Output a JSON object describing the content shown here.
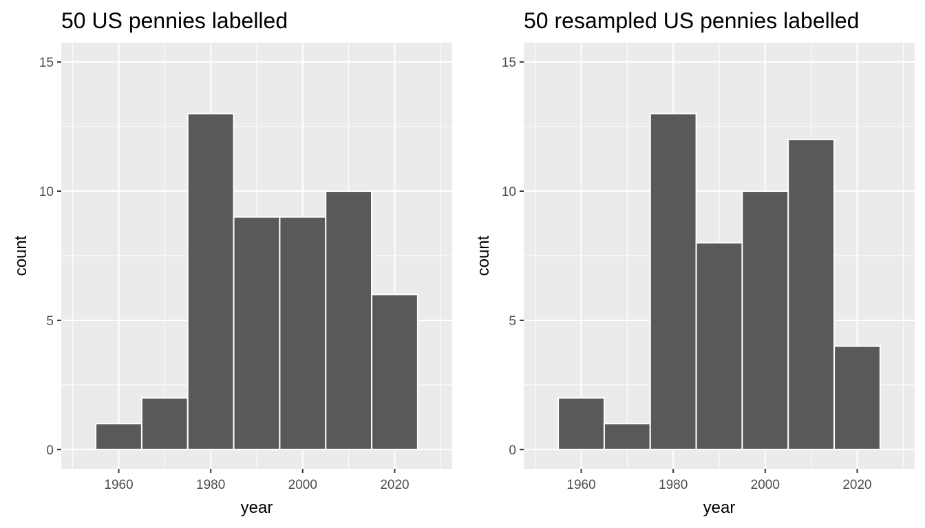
{
  "chart_data": [
    {
      "type": "bar",
      "title": "50 US pennies labelled",
      "xlabel": "year",
      "ylabel": "count",
      "bin_width": 10,
      "bins": [
        {
          "start": 1955,
          "end": 1965,
          "count": 1
        },
        {
          "start": 1965,
          "end": 1975,
          "count": 2
        },
        {
          "start": 1975,
          "end": 1985,
          "count": 13
        },
        {
          "start": 1985,
          "end": 1995,
          "count": 9
        },
        {
          "start": 1995,
          "end": 2005,
          "count": 9
        },
        {
          "start": 2005,
          "end": 2015,
          "count": 10
        },
        {
          "start": 2015,
          "end": 2025,
          "count": 6
        }
      ],
      "xlim": [
        1947.5,
        2032.5
      ],
      "ylim": [
        -0.75,
        15.75
      ],
      "x_ticks": [
        1960,
        1980,
        2000,
        2020
      ],
      "x_tick_labels": [
        "1960",
        "1980",
        "2000",
        "2020"
      ],
      "x_minor_ticks": [
        1950,
        1970,
        1990,
        2010,
        2030
      ],
      "y_ticks": [
        0,
        5,
        10,
        15
      ],
      "y_tick_labels": [
        "0",
        "5",
        "10",
        "15"
      ],
      "y_minor_ticks": [
        2.5,
        7.5,
        12.5
      ],
      "grid": true,
      "bar_fill": "#595959",
      "bar_outline": "#ffffff",
      "panel_background": "#ebebeb",
      "grid_color": "#ffffff"
    },
    {
      "type": "bar",
      "title": "50 resampled US pennies labelled",
      "xlabel": "year",
      "ylabel": "count",
      "bin_width": 10,
      "bins": [
        {
          "start": 1955,
          "end": 1965,
          "count": 2
        },
        {
          "start": 1965,
          "end": 1975,
          "count": 1
        },
        {
          "start": 1975,
          "end": 1985,
          "count": 13
        },
        {
          "start": 1985,
          "end": 1995,
          "count": 8
        },
        {
          "start": 1995,
          "end": 2005,
          "count": 10
        },
        {
          "start": 2005,
          "end": 2015,
          "count": 12
        },
        {
          "start": 2015,
          "end": 2025,
          "count": 4
        }
      ],
      "xlim": [
        1947.5,
        2032.5
      ],
      "ylim": [
        -0.75,
        15.75
      ],
      "x_ticks": [
        1960,
        1980,
        2000,
        2020
      ],
      "x_tick_labels": [
        "1960",
        "1980",
        "2000",
        "2020"
      ],
      "x_minor_ticks": [
        1950,
        1970,
        1990,
        2010,
        2030
      ],
      "y_ticks": [
        0,
        5,
        10,
        15
      ],
      "y_tick_labels": [
        "0",
        "5",
        "10",
        "15"
      ],
      "y_minor_ticks": [
        2.5,
        7.5,
        12.5
      ],
      "grid": true,
      "bar_fill": "#595959",
      "bar_outline": "#ffffff",
      "panel_background": "#ebebeb",
      "grid_color": "#ffffff"
    }
  ]
}
